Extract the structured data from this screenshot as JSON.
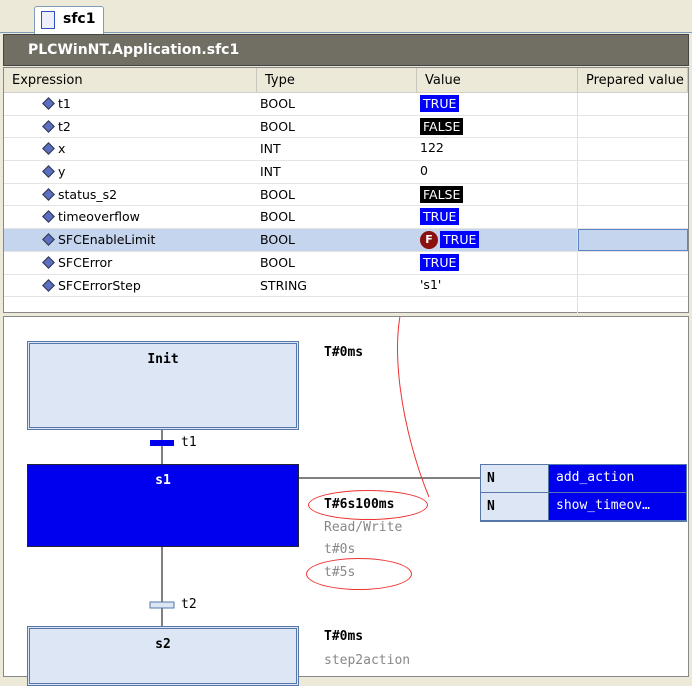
{
  "tab": {
    "label": "sfc1",
    "icon": "sfc-icon"
  },
  "title": "PLCWinNT.Application.sfc1",
  "columns": [
    "Expression",
    "Type",
    "Value",
    "Prepared value"
  ],
  "rows": [
    {
      "expr": "t1",
      "type": "BOOL",
      "value": "TRUE",
      "bg": "#0000ff"
    },
    {
      "expr": "t2",
      "type": "BOOL",
      "value": "FALSE",
      "bg": "#000000"
    },
    {
      "expr": "x",
      "type": "INT",
      "value": "122",
      "bg": ""
    },
    {
      "expr": "y",
      "type": "INT",
      "value": "0",
      "bg": ""
    },
    {
      "expr": "status_s2",
      "type": "BOOL",
      "value": "FALSE",
      "bg": "#000000"
    },
    {
      "expr": "timeoverflow",
      "type": "BOOL",
      "value": "TRUE",
      "bg": "#0000ff"
    },
    {
      "expr": "SFCEnableLimit",
      "type": "BOOL",
      "value": "TRUE",
      "bg": "#0000ff",
      "forced": "F"
    },
    {
      "expr": "SFCError",
      "type": "BOOL",
      "value": "TRUE",
      "bg": "#0000ff"
    },
    {
      "expr": "SFCErrorStep",
      "type": "STRING",
      "value": "'s1'",
      "bg": ""
    }
  ],
  "sfc": {
    "init": {
      "name": "Init",
      "time": "T#0ms"
    },
    "t1": "t1",
    "s1": {
      "name": "s1",
      "time": "T#6s100ms",
      "access": "Read/Write",
      "min": "t#0s",
      "max": "t#5s"
    },
    "actions": [
      {
        "q": "N",
        "name": "add_action"
      },
      {
        "q": "N",
        "name": "show_timeov…"
      }
    ],
    "t2": "t2",
    "s2": {
      "name": "s2",
      "time": "T#0ms",
      "action": "step2action"
    }
  }
}
